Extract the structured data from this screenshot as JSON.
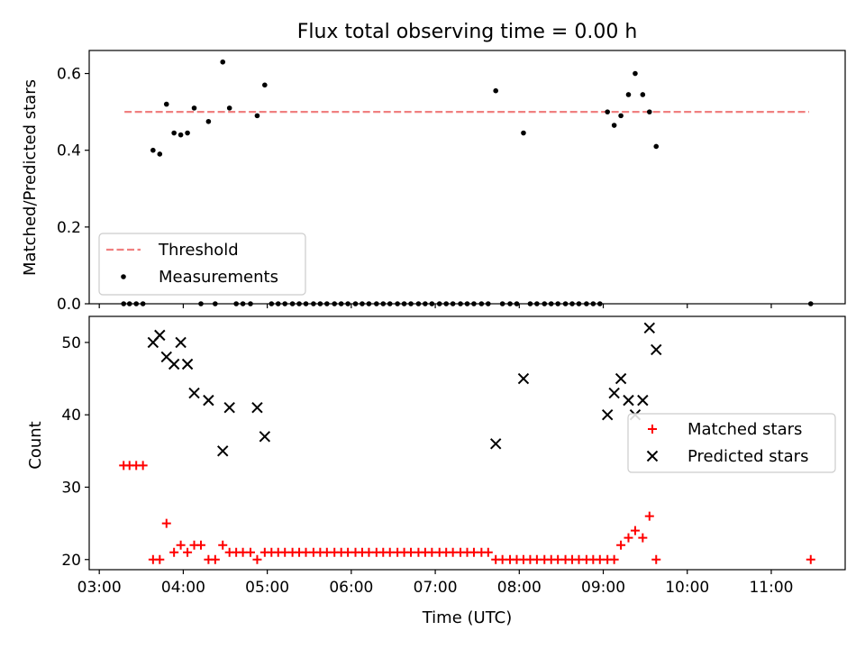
{
  "chart_data": {
    "title": "Flux total observing time = 0.00 h",
    "xlabel": "Time (UTC)",
    "x_tick_labels": [
      "03:00",
      "04:00",
      "05:00",
      "06:00",
      "07:00",
      "08:00",
      "09:00",
      "10:00",
      "11:00"
    ],
    "x_ticks_hours": [
      3,
      4,
      5,
      6,
      7,
      8,
      9,
      10,
      11
    ],
    "xlim_hours": [
      2.88,
      11.88
    ],
    "panels": [
      {
        "type": "scatter",
        "ylabel": "Matched/Predicted stars",
        "ylim": [
          0,
          0.66
        ],
        "y_ticks": [
          0,
          0.2,
          0.4,
          0.6
        ],
        "y_tick_labels": [
          "0.0",
          "0.2",
          "0.4",
          "0.6"
        ],
        "legend_position": "lower-left",
        "series": [
          {
            "name": "Threshold",
            "kind": "dashed-line",
            "color": "#f08080",
            "points": [
              [
                3.3,
                0.5
              ],
              [
                11.45,
                0.5
              ]
            ]
          },
          {
            "name": "Measurements",
            "kind": "dots",
            "color": "#000000",
            "points": [
              [
                3.29,
                0
              ],
              [
                3.36,
                0
              ],
              [
                3.44,
                0
              ],
              [
                3.52,
                0
              ],
              [
                3.64,
                0.4
              ],
              [
                3.72,
                0.39
              ],
              [
                3.8,
                0.52
              ],
              [
                3.89,
                0.445
              ],
              [
                3.97,
                0.44
              ],
              [
                4.05,
                0.445
              ],
              [
                4.13,
                0.51
              ],
              [
                4.21,
                0
              ],
              [
                4.3,
                0.475
              ],
              [
                4.38,
                0
              ],
              [
                4.47,
                0.63
              ],
              [
                4.55,
                0.51
              ],
              [
                4.63,
                0
              ],
              [
                4.71,
                0
              ],
              [
                4.8,
                0
              ],
              [
                4.88,
                0.49
              ],
              [
                4.97,
                0.57
              ],
              [
                5.05,
                0
              ],
              [
                5.13,
                0
              ],
              [
                5.21,
                0
              ],
              [
                5.3,
                0
              ],
              [
                5.38,
                0
              ],
              [
                5.46,
                0
              ],
              [
                5.55,
                0
              ],
              [
                5.63,
                0
              ],
              [
                5.71,
                0
              ],
              [
                5.8,
                0
              ],
              [
                5.88,
                0
              ],
              [
                5.96,
                0
              ],
              [
                6.05,
                0
              ],
              [
                6.13,
                0
              ],
              [
                6.21,
                0
              ],
              [
                6.3,
                0
              ],
              [
                6.38,
                0
              ],
              [
                6.46,
                0
              ],
              [
                6.55,
                0
              ],
              [
                6.63,
                0
              ],
              [
                6.71,
                0
              ],
              [
                6.8,
                0
              ],
              [
                6.88,
                0
              ],
              [
                6.96,
                0
              ],
              [
                7.05,
                0
              ],
              [
                7.13,
                0
              ],
              [
                7.21,
                0
              ],
              [
                7.3,
                0
              ],
              [
                7.38,
                0
              ],
              [
                7.46,
                0
              ],
              [
                7.55,
                0
              ],
              [
                7.63,
                0
              ],
              [
                7.72,
                0.555
              ],
              [
                7.8,
                0
              ],
              [
                7.89,
                0
              ],
              [
                7.97,
                0
              ],
              [
                8.05,
                0.445
              ],
              [
                8.13,
                0
              ],
              [
                8.21,
                0
              ],
              [
                8.3,
                0
              ],
              [
                8.38,
                0
              ],
              [
                8.46,
                0
              ],
              [
                8.55,
                0
              ],
              [
                8.63,
                0
              ],
              [
                8.71,
                0
              ],
              [
                8.8,
                0
              ],
              [
                8.88,
                0
              ],
              [
                8.96,
                0
              ],
              [
                9.05,
                0.5
              ],
              [
                9.13,
                0.465
              ],
              [
                9.21,
                0.49
              ],
              [
                9.3,
                0.545
              ],
              [
                9.38,
                0.6
              ],
              [
                9.47,
                0.545
              ],
              [
                9.55,
                0.5
              ],
              [
                9.63,
                0.41
              ],
              [
                11.47,
                0
              ]
            ]
          }
        ]
      },
      {
        "type": "scatter",
        "ylabel": "Count",
        "ylim": [
          18.6,
          53.6
        ],
        "y_ticks": [
          20,
          30,
          40,
          50
        ],
        "y_tick_labels": [
          "20",
          "30",
          "40",
          "50"
        ],
        "legend_position": "center-right",
        "series": [
          {
            "name": "Matched stars",
            "kind": "plus",
            "color": "#ff0000",
            "points": [
              [
                3.29,
                33
              ],
              [
                3.36,
                33
              ],
              [
                3.44,
                33
              ],
              [
                3.52,
                33
              ],
              [
                3.64,
                20
              ],
              [
                3.72,
                20
              ],
              [
                3.8,
                25
              ],
              [
                3.89,
                21
              ],
              [
                3.97,
                22
              ],
              [
                4.05,
                21
              ],
              [
                4.13,
                22
              ],
              [
                4.21,
                22
              ],
              [
                4.3,
                20
              ],
              [
                4.38,
                20
              ],
              [
                4.47,
                22
              ],
              [
                4.55,
                21
              ],
              [
                4.63,
                21
              ],
              [
                4.71,
                21
              ],
              [
                4.8,
                21
              ],
              [
                4.88,
                20
              ],
              [
                4.97,
                21
              ],
              [
                5.05,
                21
              ],
              [
                5.13,
                21
              ],
              [
                5.21,
                21
              ],
              [
                5.3,
                21
              ],
              [
                5.38,
                21
              ],
              [
                5.46,
                21
              ],
              [
                5.55,
                21
              ],
              [
                5.63,
                21
              ],
              [
                5.71,
                21
              ],
              [
                5.8,
                21
              ],
              [
                5.88,
                21
              ],
              [
                5.96,
                21
              ],
              [
                6.05,
                21
              ],
              [
                6.13,
                21
              ],
              [
                6.21,
                21
              ],
              [
                6.3,
                21
              ],
              [
                6.38,
                21
              ],
              [
                6.46,
                21
              ],
              [
                6.55,
                21
              ],
              [
                6.63,
                21
              ],
              [
                6.71,
                21
              ],
              [
                6.8,
                21
              ],
              [
                6.88,
                21
              ],
              [
                6.96,
                21
              ],
              [
                7.05,
                21
              ],
              [
                7.13,
                21
              ],
              [
                7.21,
                21
              ],
              [
                7.3,
                21
              ],
              [
                7.38,
                21
              ],
              [
                7.46,
                21
              ],
              [
                7.55,
                21
              ],
              [
                7.63,
                21
              ],
              [
                7.72,
                20
              ],
              [
                7.8,
                20
              ],
              [
                7.89,
                20
              ],
              [
                7.97,
                20
              ],
              [
                8.05,
                20
              ],
              [
                8.13,
                20
              ],
              [
                8.21,
                20
              ],
              [
                8.3,
                20
              ],
              [
                8.38,
                20
              ],
              [
                8.46,
                20
              ],
              [
                8.55,
                20
              ],
              [
                8.63,
                20
              ],
              [
                8.71,
                20
              ],
              [
                8.8,
                20
              ],
              [
                8.88,
                20
              ],
              [
                8.96,
                20
              ],
              [
                9.05,
                20
              ],
              [
                9.13,
                20
              ],
              [
                9.21,
                22
              ],
              [
                9.3,
                23
              ],
              [
                9.38,
                24
              ],
              [
                9.47,
                23
              ],
              [
                9.55,
                26
              ],
              [
                9.63,
                20
              ],
              [
                11.47,
                20
              ]
            ]
          },
          {
            "name": "Predicted stars",
            "kind": "cross",
            "color": "#000000",
            "points": [
              [
                3.64,
                50
              ],
              [
                3.72,
                51
              ],
              [
                3.8,
                48
              ],
              [
                3.89,
                47
              ],
              [
                3.97,
                50
              ],
              [
                4.05,
                47
              ],
              [
                4.13,
                43
              ],
              [
                4.3,
                42
              ],
              [
                4.47,
                35
              ],
              [
                4.55,
                41
              ],
              [
                4.88,
                41
              ],
              [
                4.97,
                37
              ],
              [
                7.72,
                36
              ],
              [
                8.05,
                45
              ],
              [
                9.05,
                40
              ],
              [
                9.13,
                43
              ],
              [
                9.21,
                45
              ],
              [
                9.3,
                42
              ],
              [
                9.38,
                40
              ],
              [
                9.47,
                42
              ],
              [
                9.55,
                52
              ],
              [
                9.63,
                49
              ]
            ]
          }
        ]
      }
    ]
  }
}
